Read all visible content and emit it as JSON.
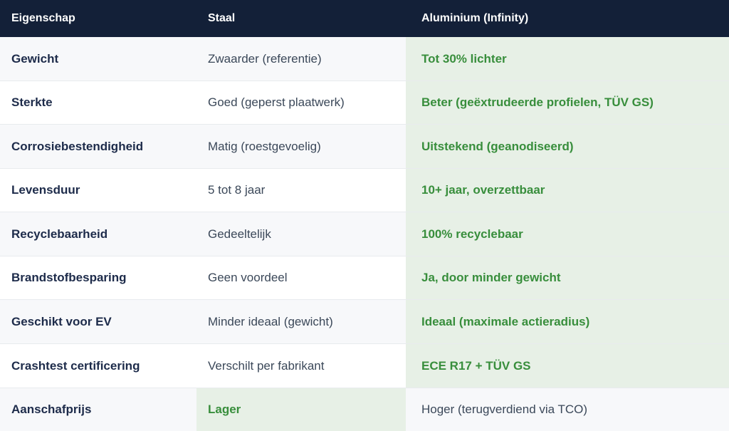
{
  "colors": {
    "header_bg": "#132038",
    "header_text": "#ffffff",
    "row_alt_bg": "#f7f8fa",
    "row_bg": "#ffffff",
    "highlight_bg": "#e7f0e6",
    "highlight_text": "#388e3c",
    "property_text": "#1d2b4a",
    "value_text": "#3b4859",
    "divider": "#e8ebee"
  },
  "table": {
    "headers": [
      "Eigenschap",
      "Staal",
      "Aluminium (Infinity)"
    ],
    "rows": [
      {
        "property": "Gewicht",
        "staal": "Zwaarder (referentie)",
        "aluminium": "Tot 30% lichter",
        "highlight": "aluminium"
      },
      {
        "property": "Sterkte",
        "staal": "Goed (geperst plaatwerk)",
        "aluminium": "Beter (geëxtrudeerde profielen, TÜV GS)",
        "highlight": "aluminium"
      },
      {
        "property": "Corrosiebestendigheid",
        "staal": "Matig (roestgevoelig)",
        "aluminium": "Uitstekend (geanodiseerd)",
        "highlight": "aluminium"
      },
      {
        "property": "Levensduur",
        "staal": "5 tot 8 jaar",
        "aluminium": "10+ jaar, overzettbaar",
        "highlight": "aluminium"
      },
      {
        "property": "Recyclebaarheid",
        "staal": "Gedeeltelijk",
        "aluminium": "100% recyclebaar",
        "highlight": "aluminium"
      },
      {
        "property": "Brandstofbesparing",
        "staal": "Geen voordeel",
        "aluminium": "Ja, door minder gewicht",
        "highlight": "aluminium"
      },
      {
        "property": "Geschikt voor EV",
        "staal": "Minder ideaal (gewicht)",
        "aluminium": "Ideaal (maximale actieradius)",
        "highlight": "aluminium"
      },
      {
        "property": "Crashtest certificering",
        "staal": "Verschilt per fabrikant",
        "aluminium": "ECE R17 + TÜV GS",
        "highlight": "aluminium"
      },
      {
        "property": "Aanschafprijs",
        "staal": "Lager",
        "aluminium": "Hoger (terugverdiend via TCO)",
        "highlight": "staal"
      }
    ]
  }
}
